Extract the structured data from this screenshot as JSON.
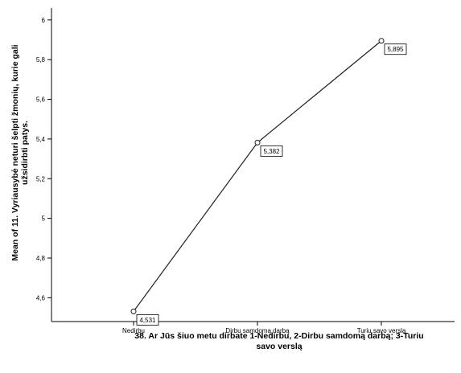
{
  "chart_data": {
    "type": "line",
    "categories": [
      "Nedirbu",
      "Dirbu samdomą darbą",
      "Turiu savo verslą"
    ],
    "values": [
      4.531,
      5.382,
      5.895
    ],
    "data_labels": [
      "4,531",
      "5,382",
      "5,895"
    ],
    "ylim": [
      4.48,
      6.06
    ],
    "yticks": [
      4.6,
      4.8,
      5.0,
      5.2,
      5.4,
      5.6,
      5.8,
      6.0
    ],
    "ytick_labels": [
      "4,6",
      "4,8",
      "5",
      "5,2",
      "5,4",
      "5,6",
      "5,8",
      "6"
    ],
    "xlabel_lines": [
      "38. Ar Jūs šiuo metu dirbate 1-Nedirbu, 2-Dirbu samdomą darbą; 3-Turiu",
      "savo verslą"
    ],
    "ylabel_lines": [
      "Mean of 11. Vyriausybė neturi šelpti žmonių, kurie gali",
      "užsidirbti patys."
    ],
    "grid": false,
    "legend": "none",
    "colors": {
      "line": "#1f1f1f",
      "axis": "#000000",
      "background": "#ffffff"
    }
  }
}
